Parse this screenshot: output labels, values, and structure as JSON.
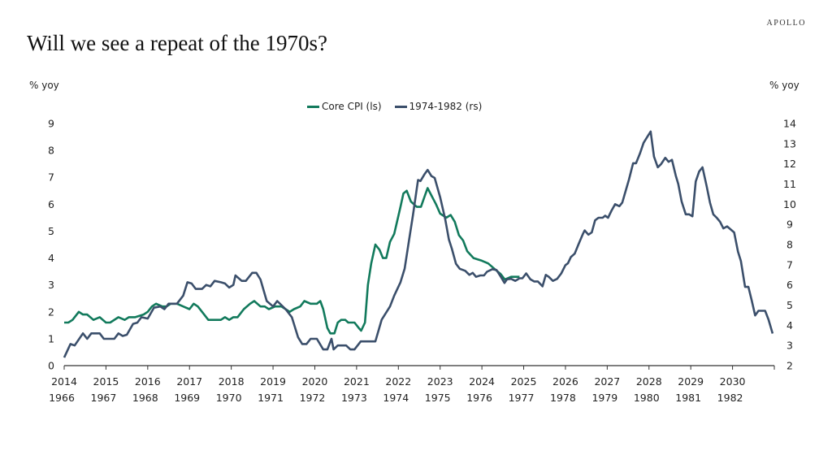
{
  "header": {
    "title": "Will we see a repeat of the 1970s?",
    "logo": "APOLLO"
  },
  "chart_data": {
    "type": "line",
    "title": "Will we see a repeat of the 1970s?",
    "y_left_label": "% yoy",
    "y_right_label": "% yoy",
    "y_left_range": [
      0,
      9
    ],
    "y_right_range": [
      2,
      14
    ],
    "y_left_ticks": [
      "0",
      "1",
      "2",
      "3",
      "4",
      "5",
      "6",
      "7",
      "8",
      "9"
    ],
    "y_right_ticks": [
      "2",
      "3",
      "4",
      "5",
      "6",
      "7",
      "8",
      "9",
      "10",
      "11",
      "12",
      "13",
      "14"
    ],
    "x_range": [
      2014,
      2031
    ],
    "x_ticks_top": [
      "2014",
      "2015",
      "2016",
      "2017",
      "2018",
      "2019",
      "2020",
      "2021",
      "2022",
      "2023",
      "2024",
      "2025",
      "2026",
      "2027",
      "2028",
      "2029",
      "2030"
    ],
    "x_ticks_bottom": [
      "1966",
      "1967",
      "1968",
      "1969",
      "1970",
      "1971",
      "1972",
      "1973",
      "1974",
      "1975",
      "1976",
      "1977",
      "1978",
      "1979",
      "1980",
      "1981",
      "1982"
    ],
    "grid": false,
    "legend_placement": "top-center",
    "series": [
      {
        "name": "Core CPI (ls)",
        "axis": "left",
        "color": "#127a5c",
        "x": [
          2014.0,
          2014.1,
          2014.2,
          2014.35,
          2014.45,
          2014.55,
          2014.7,
          2014.85,
          2015.0,
          2015.1,
          2015.3,
          2015.45,
          2015.55,
          2015.7,
          2015.9,
          2016.0,
          2016.1,
          2016.2,
          2016.35,
          2016.45,
          2016.55,
          2016.7,
          2016.85,
          2017.0,
          2017.1,
          2017.2,
          2017.3,
          2017.45,
          2017.6,
          2017.75,
          2017.85,
          2017.95,
          2018.05,
          2018.15,
          2018.3,
          2018.45,
          2018.55,
          2018.7,
          2018.8,
          2018.9,
          2019.05,
          2019.2,
          2019.3,
          2019.4,
          2019.5,
          2019.65,
          2019.75,
          2019.9,
          2020.05,
          2020.13,
          2020.2,
          2020.3,
          2020.37,
          2020.47,
          2020.55,
          2020.63,
          2020.73,
          2020.8,
          2020.95,
          2021.05,
          2021.11,
          2021.2,
          2021.27,
          2021.35,
          2021.45,
          2021.55,
          2021.63,
          2021.71,
          2021.8,
          2021.9,
          2022.05,
          2022.12,
          2022.2,
          2022.3,
          2022.44,
          2022.54,
          2022.63,
          2022.7,
          2022.8,
          2022.9,
          2023.0,
          2023.15,
          2023.25,
          2023.35,
          2023.45,
          2023.55,
          2023.65,
          2023.8,
          2024.0,
          2024.15,
          2024.3,
          2024.45,
          2024.55,
          2024.7,
          2024.9
        ],
        "values": [
          1.6,
          1.6,
          1.7,
          2.0,
          1.9,
          1.9,
          1.7,
          1.8,
          1.6,
          1.6,
          1.8,
          1.7,
          1.8,
          1.8,
          1.9,
          2.0,
          2.2,
          2.3,
          2.2,
          2.2,
          2.3,
          2.3,
          2.2,
          2.1,
          2.3,
          2.2,
          2.0,
          1.7,
          1.7,
          1.7,
          1.8,
          1.7,
          1.8,
          1.8,
          2.1,
          2.3,
          2.4,
          2.2,
          2.2,
          2.1,
          2.2,
          2.2,
          2.1,
          2.0,
          2.1,
          2.2,
          2.4,
          2.3,
          2.3,
          2.4,
          2.1,
          1.4,
          1.2,
          1.2,
          1.6,
          1.7,
          1.7,
          1.6,
          1.6,
          1.4,
          1.3,
          1.6,
          3.0,
          3.8,
          4.5,
          4.3,
          4.0,
          4.0,
          4.6,
          4.9,
          5.9,
          6.4,
          6.5,
          6.1,
          5.9,
          5.9,
          6.3,
          6.6,
          6.3,
          6.0,
          5.65,
          5.5,
          5.6,
          5.35,
          4.85,
          4.65,
          4.25,
          4.0,
          3.9,
          3.8,
          3.6,
          3.4,
          3.2,
          3.3,
          3.3
        ]
      },
      {
        "name": "1974-1982 (rs)",
        "axis": "right",
        "color": "#3b4f6b",
        "x": [
          2014.0,
          2014.15,
          2014.25,
          2014.45,
          2014.55,
          2014.65,
          2014.85,
          2014.95,
          2015.2,
          2015.3,
          2015.4,
          2015.5,
          2015.65,
          2015.75,
          2015.85,
          2016.0,
          2016.15,
          2016.3,
          2016.4,
          2016.5,
          2016.7,
          2016.85,
          2016.95,
          2017.05,
          2017.15,
          2017.3,
          2017.4,
          2017.5,
          2017.6,
          2017.75,
          2017.85,
          2017.95,
          2018.05,
          2018.1,
          2018.25,
          2018.35,
          2018.5,
          2018.6,
          2018.7,
          2018.85,
          2019.0,
          2019.1,
          2019.3,
          2019.45,
          2019.6,
          2019.7,
          2019.8,
          2019.9,
          2020.05,
          2020.2,
          2020.3,
          2020.4,
          2020.45,
          2020.55,
          2020.75,
          2020.85,
          2020.95,
          2021.1,
          2021.3,
          2021.45,
          2021.6,
          2021.8,
          2021.9,
          2022.05,
          2022.15,
          2022.25,
          2022.35,
          2022.47,
          2022.53,
          2022.63,
          2022.7,
          2022.79,
          2022.87,
          2023.0,
          2023.12,
          2023.21,
          2023.28,
          2023.38,
          2023.47,
          2023.6,
          2023.7,
          2023.78,
          2023.86,
          2023.96,
          2024.05,
          2024.12,
          2024.25,
          2024.35,
          2024.44,
          2024.54,
          2024.6,
          2024.7,
          2024.8,
          2024.9,
          2024.97,
          2025.06,
          2025.16,
          2025.25,
          2025.34,
          2025.45,
          2025.53,
          2025.6,
          2025.7,
          2025.8,
          2025.9,
          2026.0,
          2026.06,
          2026.13,
          2026.22,
          2026.32,
          2026.42,
          2026.46,
          2026.55,
          2026.63,
          2026.71,
          2026.79,
          2026.89,
          2026.95,
          2027.02,
          2027.1,
          2027.19,
          2027.29,
          2027.36,
          2027.42,
          2027.52,
          2027.62,
          2027.69,
          2027.78,
          2027.87,
          2027.97,
          2028.04,
          2028.12,
          2028.21,
          2028.29,
          2028.39,
          2028.47,
          2028.55,
          2028.64,
          2028.7,
          2028.78,
          2028.88,
          2028.96,
          2029.04,
          2029.12,
          2029.2,
          2029.28,
          2029.38,
          2029.46,
          2029.54,
          2029.62,
          2029.7,
          2029.78,
          2029.87,
          2029.95,
          2030.04,
          2030.13,
          2030.2,
          2030.3,
          2030.38,
          2030.46,
          2030.54,
          2030.62,
          2030.78,
          2030.86,
          2030.96
        ],
        "values": [
          2.4,
          3.07,
          3.0,
          3.6,
          3.33,
          3.6,
          3.6,
          3.33,
          3.33,
          3.6,
          3.47,
          3.53,
          4.07,
          4.13,
          4.4,
          4.33,
          4.87,
          4.93,
          4.8,
          5.07,
          5.07,
          5.47,
          6.13,
          6.07,
          5.8,
          5.8,
          6.0,
          5.93,
          6.2,
          6.13,
          6.07,
          5.87,
          6.0,
          6.47,
          6.2,
          6.2,
          6.6,
          6.6,
          6.27,
          5.2,
          4.93,
          5.2,
          4.8,
          4.4,
          3.4,
          3.07,
          3.07,
          3.33,
          3.33,
          2.8,
          2.8,
          3.33,
          2.8,
          3.0,
          3.0,
          2.8,
          2.8,
          3.2,
          3.2,
          3.2,
          4.27,
          4.93,
          5.47,
          6.13,
          6.8,
          8.13,
          9.47,
          11.2,
          11.15,
          11.5,
          11.7,
          11.4,
          11.3,
          10.35,
          9.27,
          8.25,
          7.8,
          7.05,
          6.8,
          6.7,
          6.5,
          6.6,
          6.4,
          6.47,
          6.47,
          6.65,
          6.78,
          6.74,
          6.45,
          6.1,
          6.28,
          6.3,
          6.2,
          6.33,
          6.33,
          6.57,
          6.28,
          6.17,
          6.17,
          5.93,
          6.5,
          6.4,
          6.2,
          6.3,
          6.57,
          6.98,
          7.07,
          7.38,
          7.55,
          8.05,
          8.53,
          8.7,
          8.49,
          8.6,
          9.2,
          9.33,
          9.33,
          9.43,
          9.33,
          9.67,
          10.0,
          9.9,
          10.08,
          10.5,
          11.22,
          12.03,
          12.03,
          12.5,
          13.04,
          13.37,
          13.6,
          12.36,
          11.83,
          11.99,
          12.3,
          12.1,
          12.2,
          11.42,
          11.0,
          10.14,
          9.5,
          9.5,
          9.4,
          11.13,
          11.62,
          11.83,
          10.9,
          10.08,
          9.5,
          9.33,
          9.13,
          8.8,
          8.9,
          8.76,
          8.6,
          7.65,
          7.18,
          5.9,
          5.9,
          5.23,
          4.49,
          4.72,
          4.72,
          4.29,
          3.59
        ]
      }
    ]
  }
}
